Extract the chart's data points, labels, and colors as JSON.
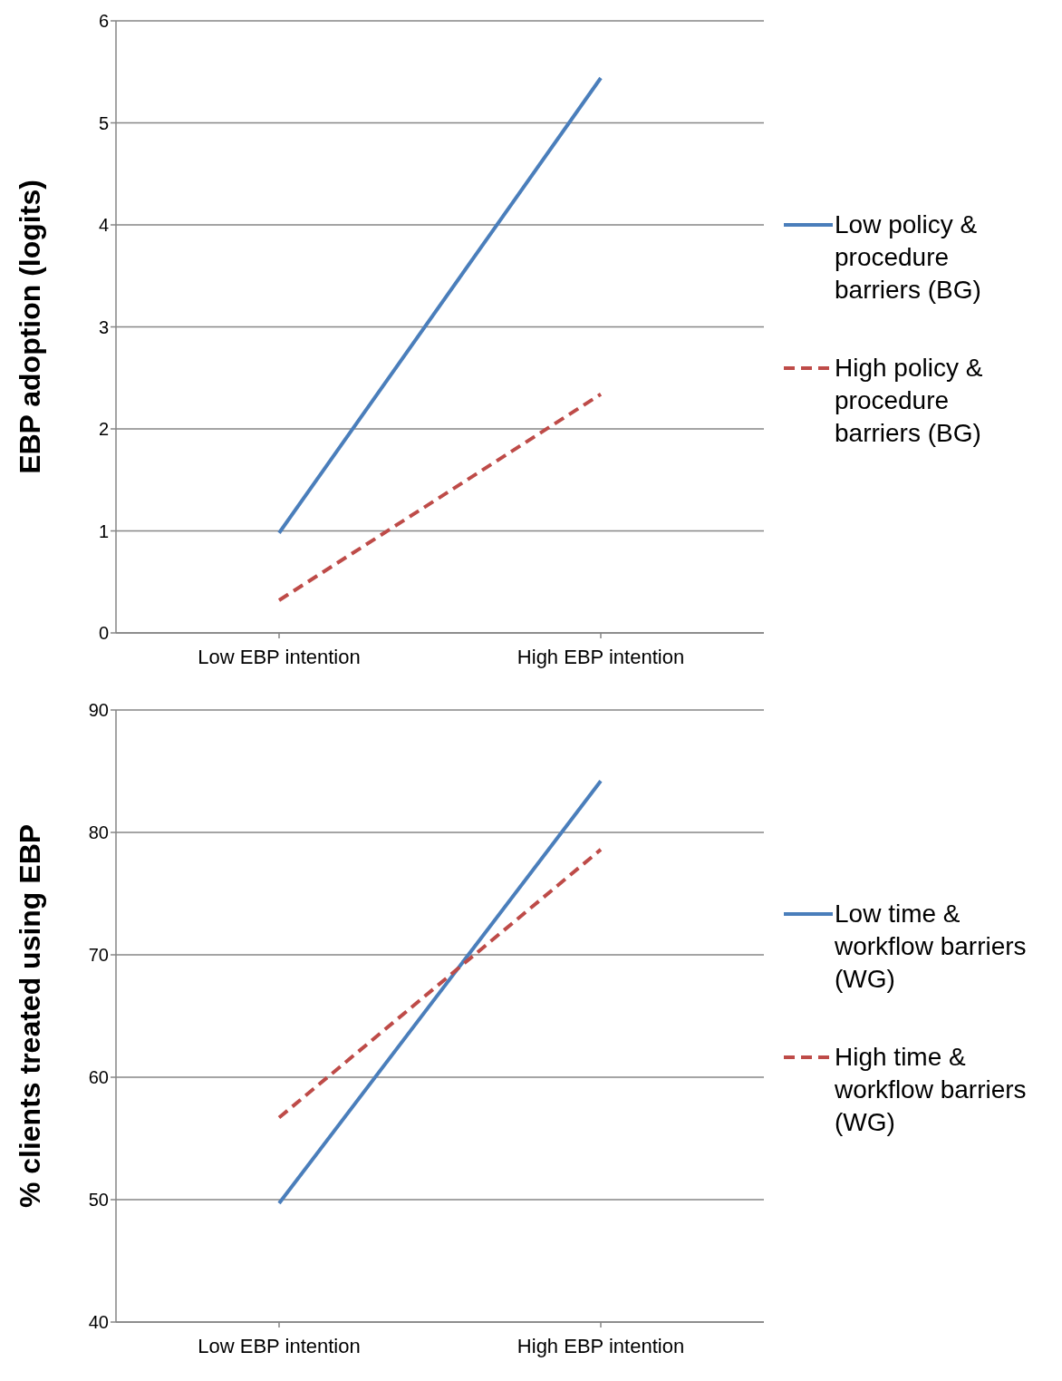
{
  "chart_data": [
    {
      "type": "line",
      "ylabel": "EBP adoption (logits)",
      "categories": [
        "Low EBP intention",
        "High EBP intention"
      ],
      "ylim": [
        0,
        6
      ],
      "yticks": [
        0,
        1,
        2,
        3,
        4,
        5,
        6
      ],
      "grid": "y",
      "legend": "right",
      "marker": "none",
      "series": [
        {
          "name": "Low policy & procedure barriers (BG)",
          "color": "#4a7ebb",
          "values": [
            0.98,
            5.44
          ],
          "line_style": "solid"
        },
        {
          "name": "High policy & procedure barriers (BG)",
          "color": "#be4b48",
          "values": [
            0.32,
            2.34
          ],
          "line_style": "dashed"
        }
      ]
    },
    {
      "type": "line",
      "ylabel": "% clients treated using EBP",
      "categories": [
        "Low EBP intention",
        "High EBP intention"
      ],
      "ylim": [
        40,
        90
      ],
      "yticks": [
        40,
        50,
        60,
        70,
        80,
        90
      ],
      "grid": "y",
      "legend": "right",
      "marker": "none",
      "series": [
        {
          "name": "Low time & workflow barriers (WG)",
          "color": "#4a7ebb",
          "values": [
            49.7,
            84.2
          ],
          "line_style": "solid"
        },
        {
          "name": "High time & workflow barriers (WG)",
          "color": "#be4b48",
          "values": [
            56.7,
            78.6
          ],
          "line_style": "dashed"
        }
      ]
    }
  ]
}
